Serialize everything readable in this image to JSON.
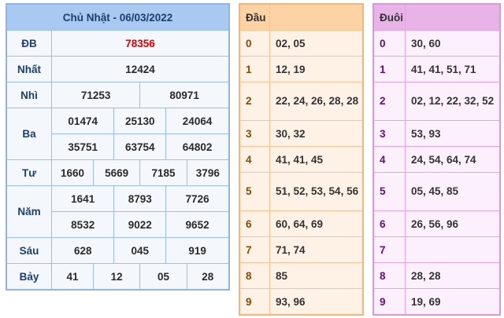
{
  "results": {
    "title": "Chủ Nhật - 06/03/2022",
    "rows": [
      {
        "label": "ĐB",
        "values": [
          "78356"
        ]
      },
      {
        "label": "Nhất",
        "values": [
          "12424"
        ]
      },
      {
        "label": "Nhì",
        "values": [
          "71253",
          "80971"
        ]
      },
      {
        "label": "Ba",
        "values": [
          "01474",
          "25130",
          "24064",
          "35751",
          "63754",
          "64802"
        ]
      },
      {
        "label": "Tư",
        "values": [
          "1660",
          "5669",
          "7185",
          "3796"
        ]
      },
      {
        "label": "Năm",
        "values": [
          "1641",
          "8793",
          "7726",
          "8532",
          "9022",
          "9652"
        ]
      },
      {
        "label": "Sáu",
        "values": [
          "628",
          "045",
          "919"
        ]
      },
      {
        "label": "Bảy",
        "values": [
          "41",
          "12",
          "05",
          "28"
        ]
      }
    ]
  },
  "dau": {
    "header": "Đầu",
    "rows": [
      {
        "k": "0",
        "v": "02, 05"
      },
      {
        "k": "1",
        "v": "12, 19"
      },
      {
        "k": "2",
        "v": "22, 24, 26, 28, 28"
      },
      {
        "k": "3",
        "v": "30, 32"
      },
      {
        "k": "4",
        "v": "41, 41, 45"
      },
      {
        "k": "5",
        "v": "51, 52, 53, 54, 56"
      },
      {
        "k": "6",
        "v": "60, 64, 69"
      },
      {
        "k": "7",
        "v": "71, 74"
      },
      {
        "k": "8",
        "v": "85"
      },
      {
        "k": "9",
        "v": "93, 96"
      }
    ]
  },
  "duoi": {
    "header": "Đuôi",
    "rows": [
      {
        "k": "0",
        "v": "30, 60"
      },
      {
        "k": "1",
        "v": "41, 41, 51, 71"
      },
      {
        "k": "2",
        "v": "02, 12, 22, 32, 52"
      },
      {
        "k": "3",
        "v": "53, 93"
      },
      {
        "k": "4",
        "v": "24, 54, 64, 74"
      },
      {
        "k": "5",
        "v": "05, 45, 85"
      },
      {
        "k": "6",
        "v": "26, 56, 96"
      },
      {
        "k": "7",
        "v": ""
      },
      {
        "k": "8",
        "v": "28, 28"
      },
      {
        "k": "9",
        "v": "19, 69"
      }
    ]
  },
  "colors": {
    "special": "#e00000",
    "blue_header": "#a9c9f1",
    "orange_header": "#fdd2a5",
    "pink_header": "#e8b4e8"
  }
}
